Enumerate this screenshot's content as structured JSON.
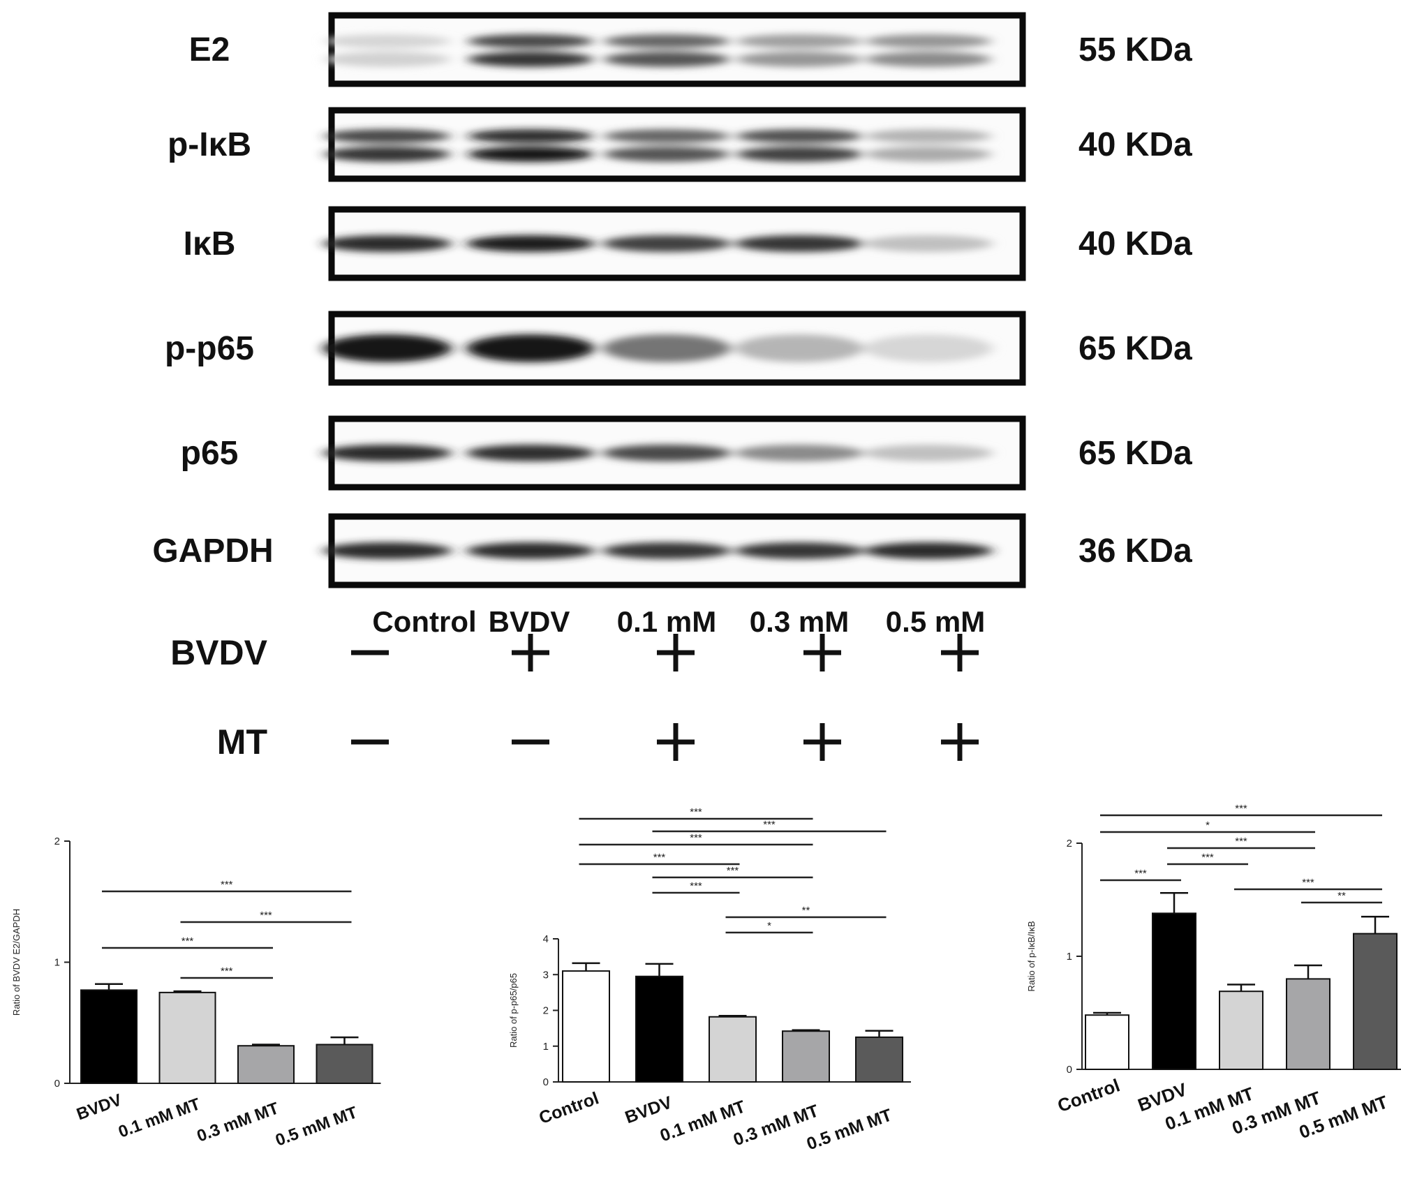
{
  "western_blot": {
    "rows": [
      {
        "protein": "E2",
        "kda": "55 KDa",
        "intensity": [
          0.12,
          0.85,
          0.7,
          0.4,
          0.45
        ],
        "double": true
      },
      {
        "protein": "p-IκB",
        "kda": "40 KDa",
        "intensity": [
          0.85,
          1.0,
          0.7,
          0.8,
          0.3
        ],
        "double": true
      },
      {
        "protein": "IκB",
        "kda": "40 KDa",
        "intensity": [
          0.9,
          0.95,
          0.8,
          0.85,
          0.2
        ],
        "double": false
      },
      {
        "protein": "p-p65",
        "kda": "65 KDa",
        "intensity": [
          1.0,
          1.0,
          0.55,
          0.25,
          0.1
        ],
        "double": false
      },
      {
        "protein": "p65",
        "kda": "65 KDa",
        "intensity": [
          0.9,
          0.88,
          0.75,
          0.45,
          0.2
        ],
        "double": false
      },
      {
        "protein": "GAPDH",
        "kda": "36 KDa",
        "intensity": [
          0.9,
          0.9,
          0.85,
          0.85,
          0.9
        ],
        "double": false
      }
    ],
    "lanes": [
      "Control",
      "BVDV",
      "0.1 mM",
      "0.3 mM",
      "0.5 mM"
    ],
    "treatments": [
      {
        "name": "BVDV",
        "marks": [
          "—",
          "+",
          "+",
          "+",
          "+"
        ]
      },
      {
        "name": "MT",
        "marks": [
          "—",
          "—",
          "+",
          "+",
          "+"
        ]
      }
    ]
  },
  "chart_data": [
    {
      "type": "bar",
      "ylabel": "Ratio of BVDV E2/GAPDH",
      "ylim": [
        0,
        2
      ],
      "yticks": [
        0,
        1,
        2
      ],
      "categories": [
        "BVDV",
        "0.1 mM MT",
        "0.3 mM MT",
        "0.5 mM MT"
      ],
      "values": [
        0.77,
        0.75,
        0.31,
        0.32
      ],
      "errors": [
        0.05,
        0.01,
        0.01,
        0.06
      ],
      "colors": [
        "#000000",
        "#d4d4d4",
        "#a6a6a8",
        "#5a5a5a"
      ],
      "significance": [
        {
          "from": 0,
          "to": 3,
          "label": "***"
        },
        {
          "from": 1,
          "to": 3,
          "label": "***"
        },
        {
          "from": 0,
          "to": 2,
          "label": "***"
        },
        {
          "from": 1,
          "to": 2,
          "label": "***"
        }
      ]
    },
    {
      "type": "bar",
      "ylabel": "Ratio of p-p65/p65",
      "ylim": [
        0,
        4
      ],
      "yticks": [
        0,
        1,
        2,
        3,
        4
      ],
      "categories": [
        "Control",
        "BVDV",
        "0.1 mM MT",
        "0.3 mM MT",
        "0.5 mM MT"
      ],
      "values": [
        3.1,
        2.95,
        1.82,
        1.42,
        1.25
      ],
      "errors": [
        0.22,
        0.35,
        0.03,
        0.03,
        0.18
      ],
      "colors": [
        "#ffffff",
        "#000000",
        "#d4d4d4",
        "#a6a6a8",
        "#5a5a5a"
      ],
      "significance": [
        {
          "from": 0,
          "to": 3,
          "label": "***"
        },
        {
          "from": 1,
          "to": 4,
          "label": "***"
        },
        {
          "from": 0,
          "to": 3,
          "label": "***"
        },
        {
          "from": 0,
          "to": 2,
          "label": "***"
        },
        {
          "from": 1,
          "to": 3,
          "label": "***"
        },
        {
          "from": 1,
          "to": 2,
          "label": "***"
        },
        {
          "from": 2,
          "to": 4,
          "label": "**"
        },
        {
          "from": 2,
          "to": 3,
          "label": "*"
        }
      ]
    },
    {
      "type": "bar",
      "ylabel": "Ratio of p-IκB/IκB",
      "ylim": [
        0,
        2
      ],
      "yticks": [
        0,
        1,
        2
      ],
      "categories": [
        "Control",
        "BVDV",
        "0.1 mM MT",
        "0.3 mM MT",
        "0.5 mM MT"
      ],
      "values": [
        0.48,
        1.38,
        0.69,
        0.8,
        1.2
      ],
      "errors": [
        0.02,
        0.18,
        0.06,
        0.12,
        0.15
      ],
      "colors": [
        "#ffffff",
        "#000000",
        "#d4d4d4",
        "#a6a6a8",
        "#5a5a5a"
      ],
      "significance": [
        {
          "from": 0,
          "to": 4,
          "label": "***"
        },
        {
          "from": 0,
          "to": 3,
          "label": "*"
        },
        {
          "from": 1,
          "to": 3,
          "label": "***"
        },
        {
          "from": 1,
          "to": 2,
          "label": "***"
        },
        {
          "from": 0,
          "to": 1,
          "label": "***"
        },
        {
          "from": 2,
          "to": 4,
          "label": "***"
        },
        {
          "from": 3,
          "to": 4,
          "label": "**"
        }
      ]
    }
  ]
}
